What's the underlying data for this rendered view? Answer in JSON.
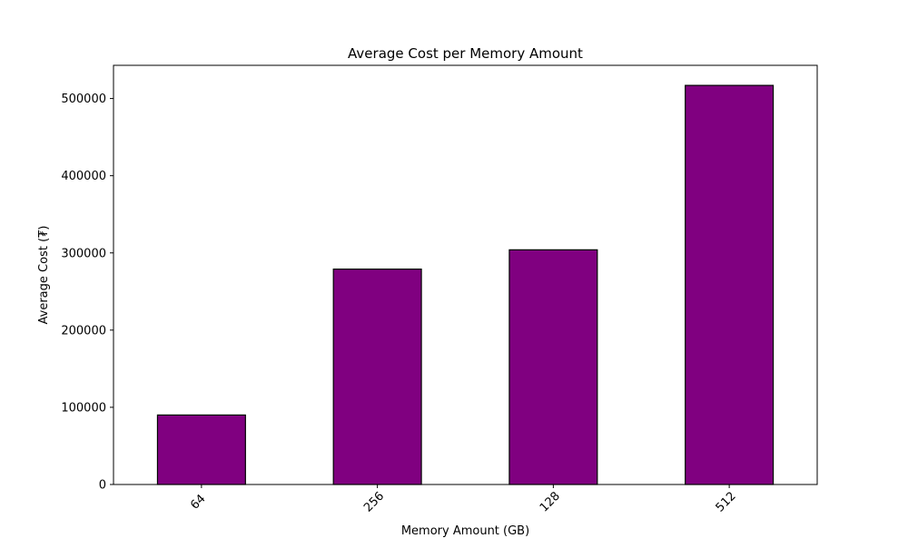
{
  "chart_data": {
    "type": "bar",
    "title": "Average Cost per Memory Amount",
    "xlabel": "Memory Amount (GB)",
    "ylabel": "Average Cost (₮)",
    "categories": [
      "64",
      "256",
      "128",
      "512"
    ],
    "values": [
      90000,
      279000,
      304000,
      517000
    ],
    "ylim": [
      0,
      543000
    ],
    "yticks": [
      0,
      100000,
      200000,
      300000,
      400000,
      500000
    ],
    "ytick_labels": [
      "0",
      "100000",
      "200000",
      "300000",
      "400000",
      "500000"
    ],
    "grid": false,
    "legend": "none",
    "colors": {
      "bar_fill": "#800080",
      "bar_edge": "#000000",
      "axes": "#000000"
    }
  }
}
